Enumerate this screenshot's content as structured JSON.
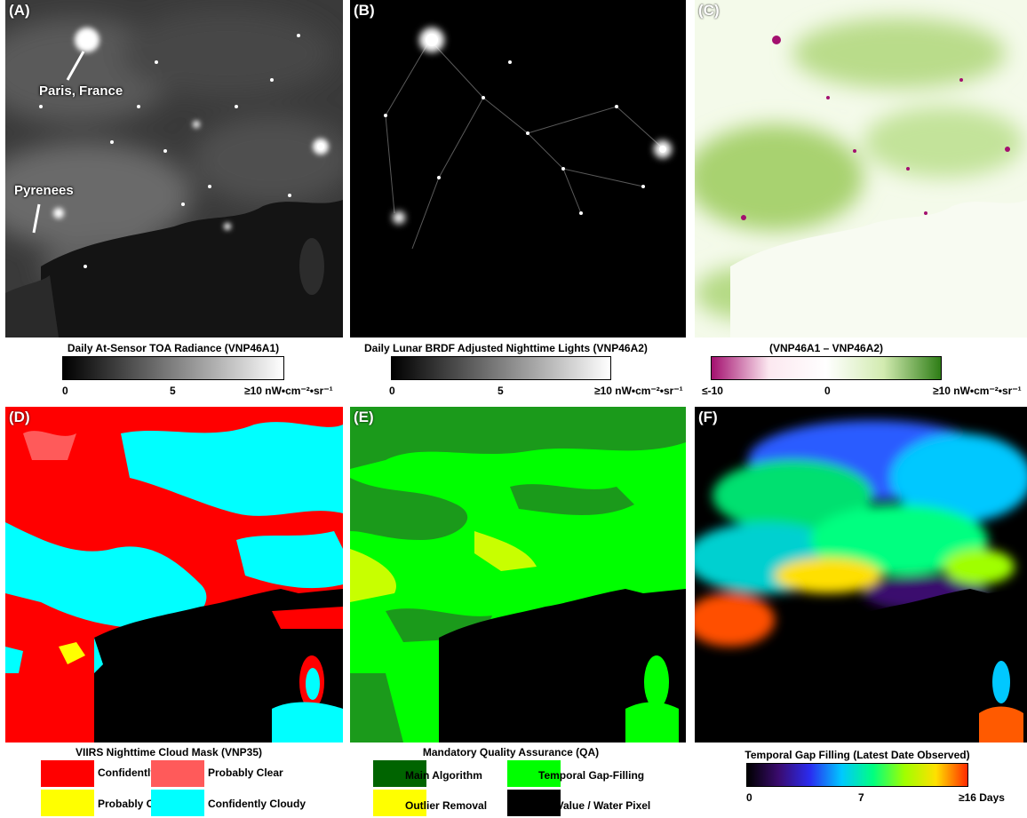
{
  "panels": [
    {
      "label": "(A)"
    },
    {
      "label": "(B)"
    },
    {
      "label": "(C)"
    },
    {
      "label": "(D)"
    },
    {
      "label": "(E)"
    },
    {
      "label": "(F)"
    }
  ],
  "annotations": {
    "paris": "Paris, France",
    "pyrenees": "Pyrenees"
  },
  "colorbars": {
    "a": {
      "title": "Daily At-Sensor TOA Radiance (VNP46A1)",
      "min": "0",
      "mid": "5",
      "max": "≥10 nW•cm⁻²•sr⁻¹",
      "colors": [
        "#000000",
        "#ffffff"
      ]
    },
    "b": {
      "title": "Daily Lunar BRDF Adjusted Nighttime Lights (VNP46A2)",
      "min": "0",
      "mid": "5",
      "max": "≥10 nW•cm⁻²•sr⁻¹",
      "colors": [
        "#000000",
        "#ffffff"
      ]
    },
    "c": {
      "title": "(VNP46A1 – VNP46A2)",
      "min": "≤-10",
      "mid": "0",
      "max": "≥10 nW•cm⁻²•sr⁻¹",
      "colors": [
        "#a3106f",
        "#fce8f0",
        "#ffffff",
        "#d2ebb0",
        "#2e7d16"
      ]
    },
    "f": {
      "title": "Temporal Gap Filling (Latest Date Observed)",
      "min": "0",
      "mid": "7",
      "max": "≥16 Days",
      "colors": [
        "#000000",
        "#3a0b6e",
        "#2a2cf0",
        "#00c8ff",
        "#00ff80",
        "#a0ff00",
        "#ffe000",
        "#ff2a00"
      ]
    }
  },
  "legend_d": {
    "title": "VIIRS Nighttime Cloud Mask (VNP35)",
    "items": [
      {
        "label": "Confidently Clear",
        "color": "#ff0000"
      },
      {
        "label": "Probably Clear",
        "color": "#ff5a5a"
      },
      {
        "label": "Probably Cloudy",
        "color": "#ffff00"
      },
      {
        "label": "Confidently Cloudy",
        "color": "#00ffff"
      }
    ]
  },
  "legend_e": {
    "title": "Mandatory Quality Assurance (QA)",
    "items": [
      {
        "label": "Main Algorithm",
        "color": "#006400"
      },
      {
        "label": "Temporal Gap-Filling",
        "color": "#00ff00"
      },
      {
        "label": "Outlier Removal",
        "color": "#ffff00"
      },
      {
        "label": "Fill Value / Water Pixel",
        "color": "#000000"
      }
    ]
  }
}
